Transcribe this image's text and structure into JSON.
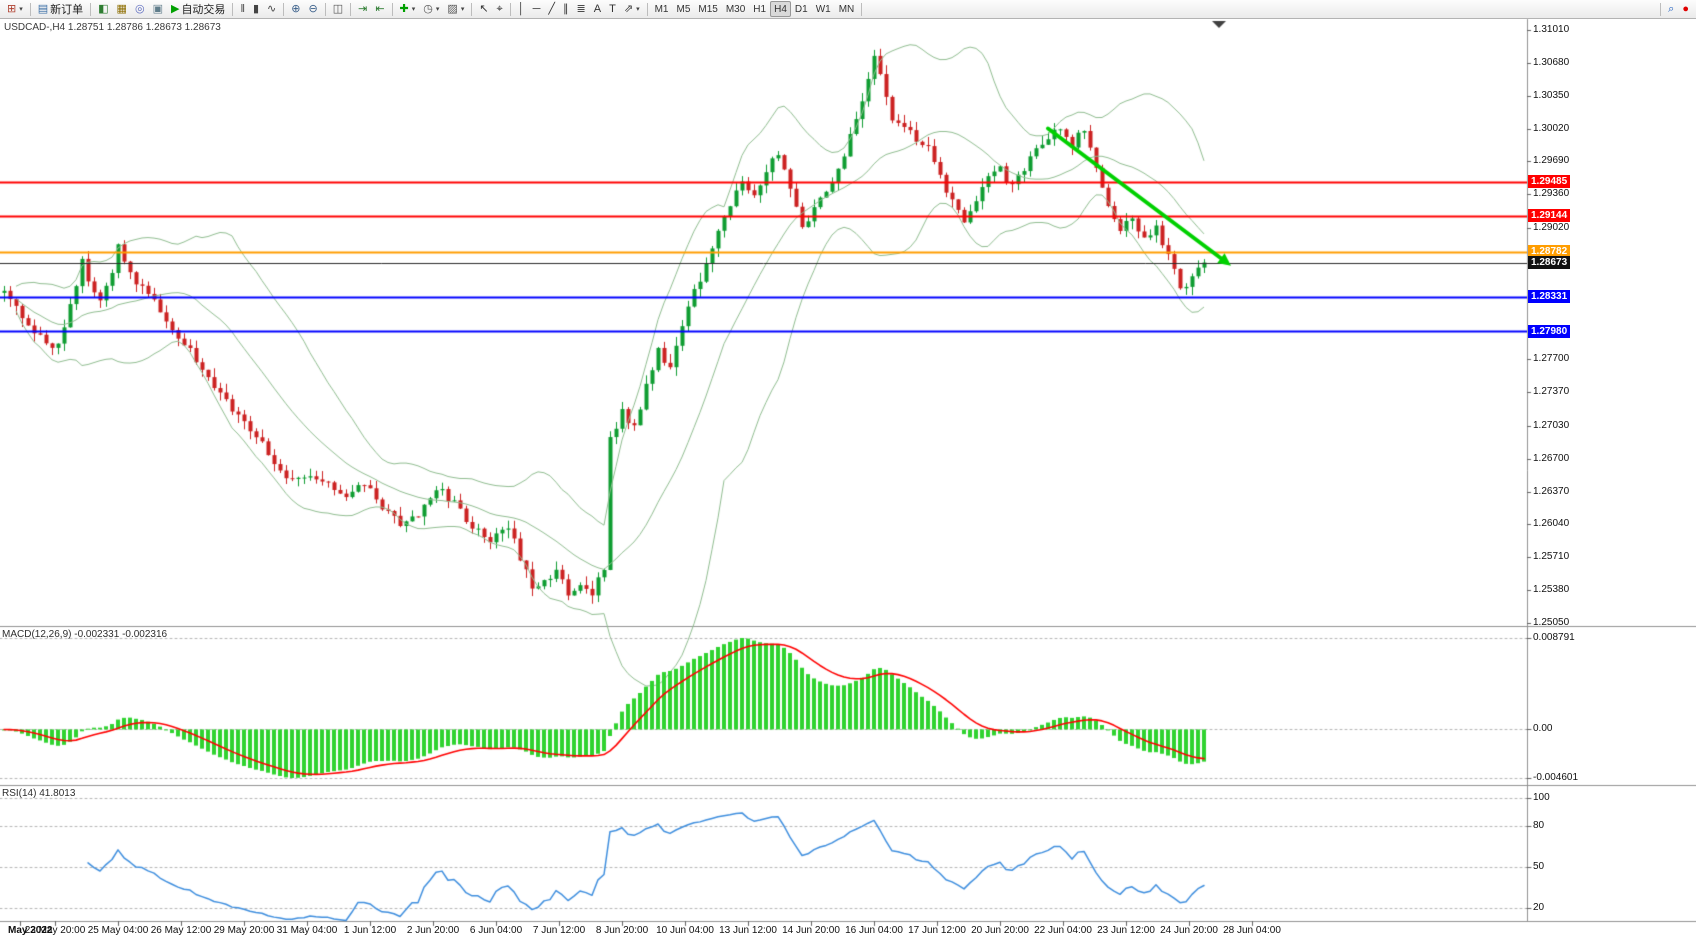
{
  "toolbar": {
    "groups": [
      {
        "items": [
          {
            "name": "new-chart-button",
            "icon": "new-chart-icon",
            "glyph": "⊞",
            "glyph_color": "#b04030",
            "dropdown": true
          }
        ]
      },
      {
        "items": [
          {
            "name": "new-order-button",
            "icon": "new-order-icon",
            "glyph": "▤",
            "glyph_color": "#3a6ea5",
            "label": "新订单"
          }
        ]
      },
      {
        "items": [
          {
            "name": "market-watch-button",
            "icon": "market-watch-icon",
            "glyph": "◧",
            "glyph_color": "#2e7d32"
          },
          {
            "name": "data-window-button",
            "icon": "data-window-icon",
            "glyph": "▦",
            "glyph_color": "#8d6e00"
          },
          {
            "name": "navigator-button",
            "icon": "navigator-icon",
            "glyph": "◎",
            "glyph_color": "#5c6bc0"
          },
          {
            "name": "terminal-button",
            "icon": "terminal-icon",
            "glyph": "▣",
            "glyph_color": "#607d8b"
          },
          {
            "name": "autotrading-button",
            "icon": "autotrading-play-icon",
            "glyph": "▶",
            "glyph_color": "#00a000",
            "label": "自动交易"
          }
        ]
      },
      {
        "items": [
          {
            "name": "bar-chart-mode-button",
            "icon": "ohlc-bars-icon",
            "glyph": "‖",
            "glyph_color": "#444444"
          },
          {
            "name": "candlestick-mode-button",
            "icon": "candlestick-icon",
            "glyph": "▮",
            "glyph_color": "#444444"
          },
          {
            "name": "line-chart-mode-button",
            "icon": "line-chart-icon",
            "glyph": "∿",
            "glyph_color": "#444444"
          }
        ]
      },
      {
        "items": [
          {
            "name": "zoom-in-button",
            "icon": "zoom-in-icon",
            "glyph": "⊕",
            "glyph_color": "#3a5f8a"
          },
          {
            "name": "zoom-out-button",
            "icon": "zoom-out-icon",
            "glyph": "⊖",
            "glyph_color": "#3a5f8a"
          }
        ]
      },
      {
        "items": [
          {
            "name": "tile-windows-button",
            "icon": "tile-windows-icon",
            "glyph": "◫",
            "glyph_color": "#555555"
          }
        ]
      },
      {
        "items": [
          {
            "name": "auto-scroll-button",
            "icon": "auto-scroll-icon",
            "glyph": "⇥",
            "glyph_color": "#2e7d32"
          },
          {
            "name": "chart-shift-button",
            "icon": "chart-shift-icon",
            "glyph": "⇤",
            "glyph_color": "#2e7d32"
          }
        ]
      },
      {
        "items": [
          {
            "name": "indicators-button",
            "icon": "add-indicator-icon",
            "glyph": "✚",
            "glyph_color": "#00a000",
            "dropdown": true
          },
          {
            "name": "periods-button",
            "icon": "clock-icon",
            "glyph": "◷",
            "glyph_color": "#555555",
            "dropdown": true
          },
          {
            "name": "templates-button",
            "icon": "template-icon",
            "glyph": "▨",
            "glyph_color": "#555555",
            "dropdown": true
          }
        ]
      },
      {
        "items": [
          {
            "name": "cursor-button",
            "icon": "cursor-icon",
            "glyph": "↖",
            "glyph_color": "#333333"
          },
          {
            "name": "crosshair-button",
            "icon": "crosshair-icon",
            "glyph": "⌖",
            "glyph_color": "#333333"
          }
        ]
      },
      {
        "items": [
          {
            "name": "vertical-line-tool-button",
            "icon": "vertical-line-icon",
            "glyph": "│",
            "glyph_color": "#333333"
          },
          {
            "name": "horizontal-line-tool-button",
            "icon": "horizontal-line-icon",
            "glyph": "─",
            "glyph_color": "#333333"
          },
          {
            "name": "trendline-tool-button",
            "icon": "trendline-icon",
            "glyph": "╱",
            "glyph_color": "#333333"
          },
          {
            "name": "channel-tool-button",
            "icon": "channel-icon",
            "glyph": "∥",
            "glyph_color": "#333333"
          },
          {
            "name": "fibonacci-tool-button",
            "icon": "fibonacci-icon",
            "glyph": "≣",
            "glyph_color": "#333333"
          },
          {
            "name": "text-tool-button",
            "icon": "text-icon",
            "glyph": "A",
            "glyph_color": "#333333"
          },
          {
            "name": "label-tool-button",
            "icon": "label-icon",
            "glyph": "T",
            "glyph_color": "#333333"
          },
          {
            "name": "arrows-tool-button",
            "icon": "arrow-shapes-icon",
            "glyph": "⇗",
            "glyph_color": "#333333",
            "dropdown": true
          }
        ]
      },
      {
        "items": [
          {
            "name": "timeframe-m1-button",
            "label": "M1"
          },
          {
            "name": "timeframe-m5-button",
            "label": "M5"
          },
          {
            "name": "timeframe-m15-button",
            "label": "M15"
          },
          {
            "name": "timeframe-m30-button",
            "label": "M30"
          },
          {
            "name": "timeframe-h1-button",
            "label": "H1"
          },
          {
            "name": "timeframe-h4-button",
            "label": "H4",
            "active": true
          },
          {
            "name": "timeframe-d1-button",
            "label": "D1"
          },
          {
            "name": "timeframe-w1-button",
            "label": "W1"
          },
          {
            "name": "timeframe-mn-button",
            "label": "MN"
          }
        ]
      },
      {
        "items": [
          {
            "name": "spacer"
          }
        ]
      },
      {
        "items": [
          {
            "name": "search-button",
            "icon": "search-icon",
            "glyph": "⌕",
            "glyph_color": "#2060c0"
          },
          {
            "name": "alert-indicator",
            "icon": "notification-dot-icon",
            "glyph": "●",
            "glyph_color": "#e00000"
          }
        ]
      }
    ],
    "timeframe_active": "H4"
  },
  "chart": {
    "title": "USDCAD-,H4  1.28751 1.28786 1.28673 1.28673",
    "symbol": "USDCAD-",
    "period": "H4",
    "ohlc": {
      "open": "1.28751",
      "high": "1.28786",
      "low": "1.28673",
      "close": "1.28673"
    },
    "macd_label": "MACD(12,26,9) -0.002331 -0.002316",
    "rsi_label": "RSI(14) 41.8013"
  },
  "chart_data": {
    "type": "candlestick",
    "symbol": "USDCAD-",
    "timeframe": "H4",
    "price_range": {
      "top": 1.3101,
      "bottom": 1.2505
    },
    "price_axis_ticks": [
      "1.31010",
      "1.30680",
      "1.30350",
      "1.30020",
      "1.29690",
      "1.29360",
      "1.29020",
      "1.27700",
      "1.27370",
      "1.27030",
      "1.26700",
      "1.26370",
      "1.26040",
      "1.25710",
      "1.25380",
      "1.25050"
    ],
    "levels": [
      {
        "price": 1.29485,
        "label": "1.29485",
        "color": "#ff0000",
        "width": 2,
        "badge": true
      },
      {
        "price": 1.29144,
        "label": "1.29144",
        "color": "#ff0000",
        "width": 2,
        "badge": true
      },
      {
        "price": 1.28782,
        "label": "1.28782",
        "color": "#ff9d00",
        "width": 2,
        "badge": true
      },
      {
        "price": 1.28673,
        "label": "1.28673",
        "color": "#2a2a2a",
        "width": 1,
        "badge": true,
        "badge_color": "#111111"
      },
      {
        "price": 1.28331,
        "label": "1.28331",
        "color": "#0000ff",
        "width": 2,
        "badge": true
      },
      {
        "price": 1.2798,
        "label": "1.27980",
        "color": "#0000ff",
        "width": 2,
        "badge": true
      }
    ],
    "candle_colors": {
      "up": "#0f9d32",
      "down": "#cc2222"
    },
    "candle_spacing_px": 6,
    "candle_count": 201,
    "price_path_anchors": [
      [
        0,
        1.2838
      ],
      [
        2,
        1.282
      ],
      [
        4,
        1.2808
      ],
      [
        6,
        1.2792
      ],
      [
        8,
        1.2778
      ],
      [
        10,
        1.28
      ],
      [
        12,
        1.2845
      ],
      [
        13,
        1.2872
      ],
      [
        14,
        1.285
      ],
      [
        16,
        1.283
      ],
      [
        18,
        1.2856
      ],
      [
        19,
        1.2888
      ],
      [
        20,
        1.2868
      ],
      [
        22,
        1.2848
      ],
      [
        24,
        1.2838
      ],
      [
        26,
        1.282
      ],
      [
        28,
        1.28
      ],
      [
        30,
        1.2786
      ],
      [
        33,
        1.2762
      ],
      [
        36,
        1.2736
      ],
      [
        39,
        1.2712
      ],
      [
        42,
        1.2692
      ],
      [
        45,
        1.2668
      ],
      [
        48,
        1.2646
      ],
      [
        51,
        1.2656
      ],
      [
        54,
        1.2642
      ],
      [
        57,
        1.2628
      ],
      [
        60,
        1.2646
      ],
      [
        63,
        1.2622
      ],
      [
        66,
        1.2606
      ],
      [
        69,
        1.2616
      ],
      [
        72,
        1.264
      ],
      [
        75,
        1.2626
      ],
      [
        78,
        1.2602
      ],
      [
        81,
        1.2586
      ],
      [
        84,
        1.26
      ],
      [
        86,
        1.2572
      ],
      [
        88,
        1.2544
      ],
      [
        90,
        1.2548
      ],
      [
        92,
        1.2556
      ],
      [
        94,
        1.2536
      ],
      [
        96,
        1.2546
      ],
      [
        98,
        1.2532
      ],
      [
        100,
        1.2562
      ],
      [
        101,
        1.2688
      ],
      [
        103,
        1.2718
      ],
      [
        105,
        1.2702
      ],
      [
        107,
        1.2742
      ],
      [
        109,
        1.2778
      ],
      [
        111,
        1.2762
      ],
      [
        113,
        1.2802
      ],
      [
        115,
        1.2838
      ],
      [
        117,
        1.2862
      ],
      [
        119,
        1.2898
      ],
      [
        121,
        1.2928
      ],
      [
        123,
        1.2948
      ],
      [
        125,
        1.2938
      ],
      [
        127,
        1.2958
      ],
      [
        129,
        1.2978
      ],
      [
        131,
        1.2942
      ],
      [
        133,
        1.2902
      ],
      [
        135,
        1.2922
      ],
      [
        137,
        1.2942
      ],
      [
        139,
        1.2962
      ],
      [
        141,
        1.2992
      ],
      [
        143,
        1.3032
      ],
      [
        145,
        1.3072
      ],
      [
        146,
        1.3058
      ],
      [
        148,
        1.3012
      ],
      [
        150,
        1.3002
      ],
      [
        152,
        1.2992
      ],
      [
        154,
        1.2982
      ],
      [
        156,
        1.2952
      ],
      [
        158,
        1.2932
      ],
      [
        160,
        1.2912
      ],
      [
        162,
        1.2932
      ],
      [
        164,
        1.2952
      ],
      [
        166,
        1.2962
      ],
      [
        168,
        1.2942
      ],
      [
        170,
        1.2962
      ],
      [
        172,
        1.2982
      ],
      [
        174,
        1.2992
      ],
      [
        176,
        1.3002
      ],
      [
        178,
        1.2986
      ],
      [
        180,
        1.3002
      ],
      [
        182,
        1.2962
      ],
      [
        184,
        1.2922
      ],
      [
        186,
        1.2902
      ],
      [
        188,
        1.2912
      ],
      [
        190,
        1.2892
      ],
      [
        192,
        1.2902
      ],
      [
        194,
        1.2872
      ],
      [
        196,
        1.2842
      ],
      [
        198,
        1.2852
      ],
      [
        200,
        1.28673
      ]
    ],
    "bollinger": {
      "period": 20,
      "deviation": 2,
      "color": "#8FBC8F"
    },
    "trend_arrow": {
      "from_index": 174,
      "from_price": 1.3002,
      "to_index": 204.5,
      "to_price": 1.2864,
      "color": "#00d000"
    },
    "macd": {
      "params": "12,26,9",
      "value_main": "-0.002331",
      "value_signal": "-0.002316",
      "axis_max_label": "0.008791",
      "axis_zero_label": "0.00",
      "axis_min_label": "-0.004601",
      "histogram_color": "#2fd32f",
      "signal_color": "#ff0000"
    },
    "rsi": {
      "params": "14",
      "value": "41.8013",
      "levels": [
        100,
        80,
        50,
        20
      ],
      "color": "#3E8EDE"
    },
    "time_labels": [
      "May 2022",
      "23 May 20:00",
      "25 May 04:00",
      "26 May 12:00",
      "29 May 20:00",
      "31 May 04:00",
      "1 Jun 12:00",
      "2 Jun 20:00",
      "6 Jun 04:00",
      "7 Jun 12:00",
      "8 Jun 20:00",
      "10 Jun 04:00",
      "13 Jun 12:00",
      "14 Jun 20:00",
      "16 Jun 04:00",
      "17 Jun 12:00",
      "20 Jun 20:00",
      "22 Jun 04:00",
      "23 Jun 12:00",
      "24 Jun 20:00",
      "28 Jun 04:00"
    ]
  }
}
